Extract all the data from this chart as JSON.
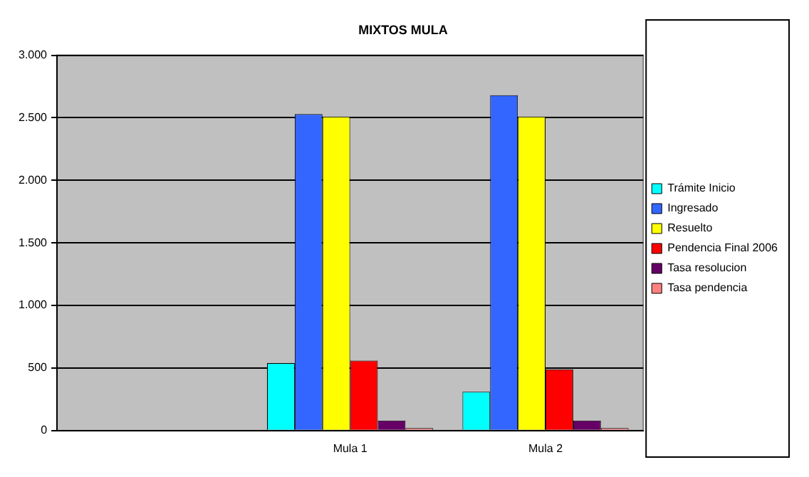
{
  "chart_data": {
    "type": "bar",
    "title": "MIXTOS MULA",
    "categories": [
      null,
      "Mula 1",
      "Mula 2"
    ],
    "series": [
      {
        "name": "Trámite Inicio",
        "color": "#00ffff",
        "values": [
          null,
          540,
          310
        ]
      },
      {
        "name": "Ingresado",
        "color": "#3366ff",
        "values": [
          null,
          2530,
          2680
        ]
      },
      {
        "name": "Resuelto",
        "color": "#ffff00",
        "values": [
          null,
          2510,
          2510
        ]
      },
      {
        "name": "Pendencia Final 2006",
        "color": "#ff0000",
        "values": [
          null,
          560,
          490
        ]
      },
      {
        "name": "Tasa resolucion",
        "color": "#660066",
        "values": [
          null,
          80,
          80
        ]
      },
      {
        "name": "Tasa pendencia",
        "color": "#ff8080",
        "values": [
          null,
          20,
          20
        ]
      }
    ],
    "ylim": [
      0,
      3000
    ],
    "yticks": [
      {
        "value": 0,
        "label": "0"
      },
      {
        "value": 500,
        "label": "500"
      },
      {
        "value": 1000,
        "label": "1.000"
      },
      {
        "value": 1500,
        "label": "1.500"
      },
      {
        "value": 2000,
        "label": "2.000"
      },
      {
        "value": 2500,
        "label": "2.500"
      },
      {
        "value": 3000,
        "label": "3.000"
      }
    ],
    "grid": "y",
    "legend": "right"
  }
}
